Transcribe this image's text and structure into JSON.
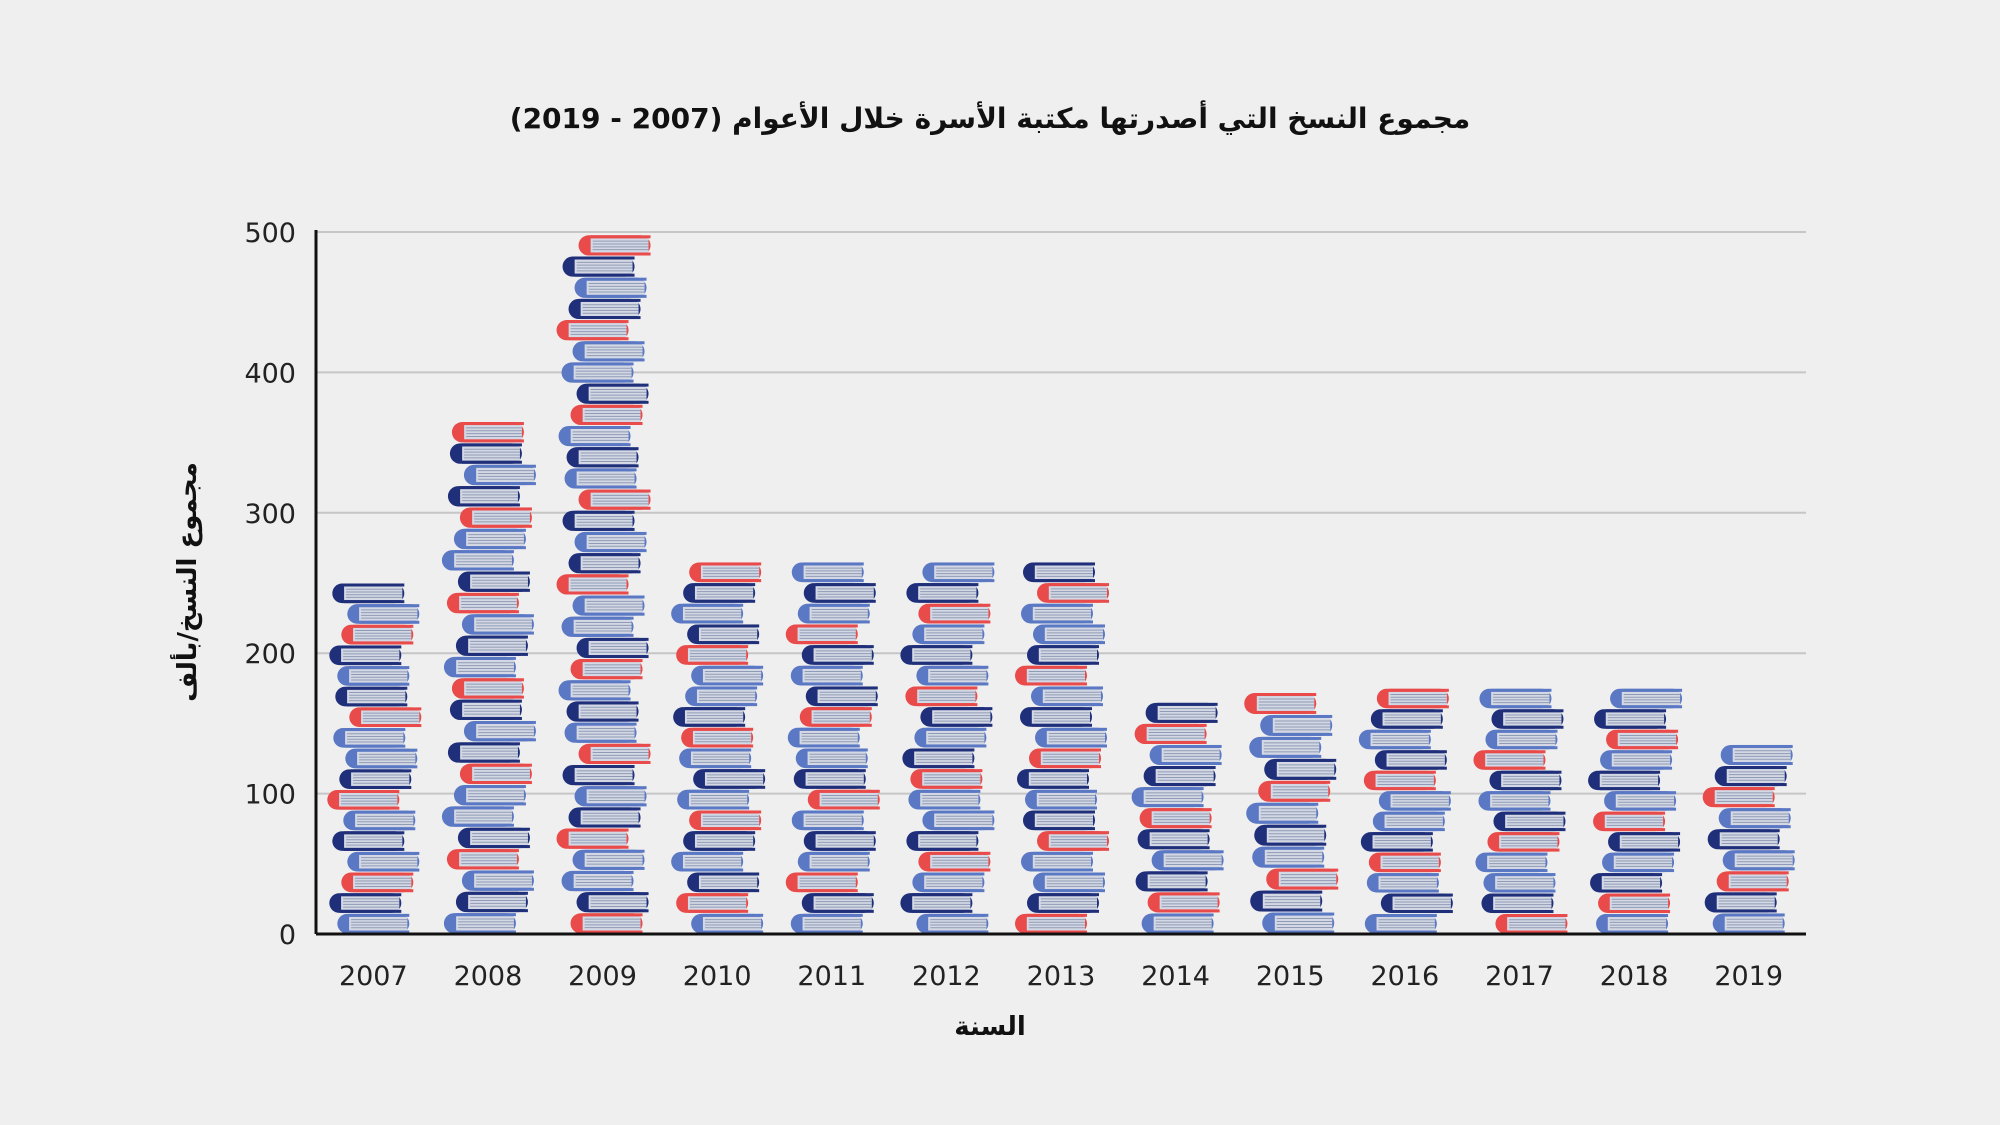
{
  "chart_data": {
    "type": "bar",
    "title": "مجموع النسخ التي أصدرتها مكتبة الأسرة خلال الأعوام (2007 - 2019)",
    "xlabel": "السنة",
    "ylabel": "مجموع النسخ/بألف",
    "categories": [
      "2007",
      "2008",
      "2009",
      "2010",
      "2011",
      "2012",
      "2013",
      "2014",
      "2015",
      "2016",
      "2017",
      "2018",
      "2019"
    ],
    "values": [
      250,
      365,
      498,
      265,
      265,
      265,
      265,
      165,
      172,
      175,
      175,
      175,
      135
    ],
    "ylim": [
      0,
      500
    ],
    "yticks": [
      0,
      100,
      200,
      300,
      400,
      500
    ],
    "grid": true,
    "colors": {
      "red": "#e94a4a",
      "navy": "#1f2f7a",
      "blue": "#5b78c4",
      "pages": "#d3d8e4",
      "page_lines": "#8f9bb5"
    }
  }
}
